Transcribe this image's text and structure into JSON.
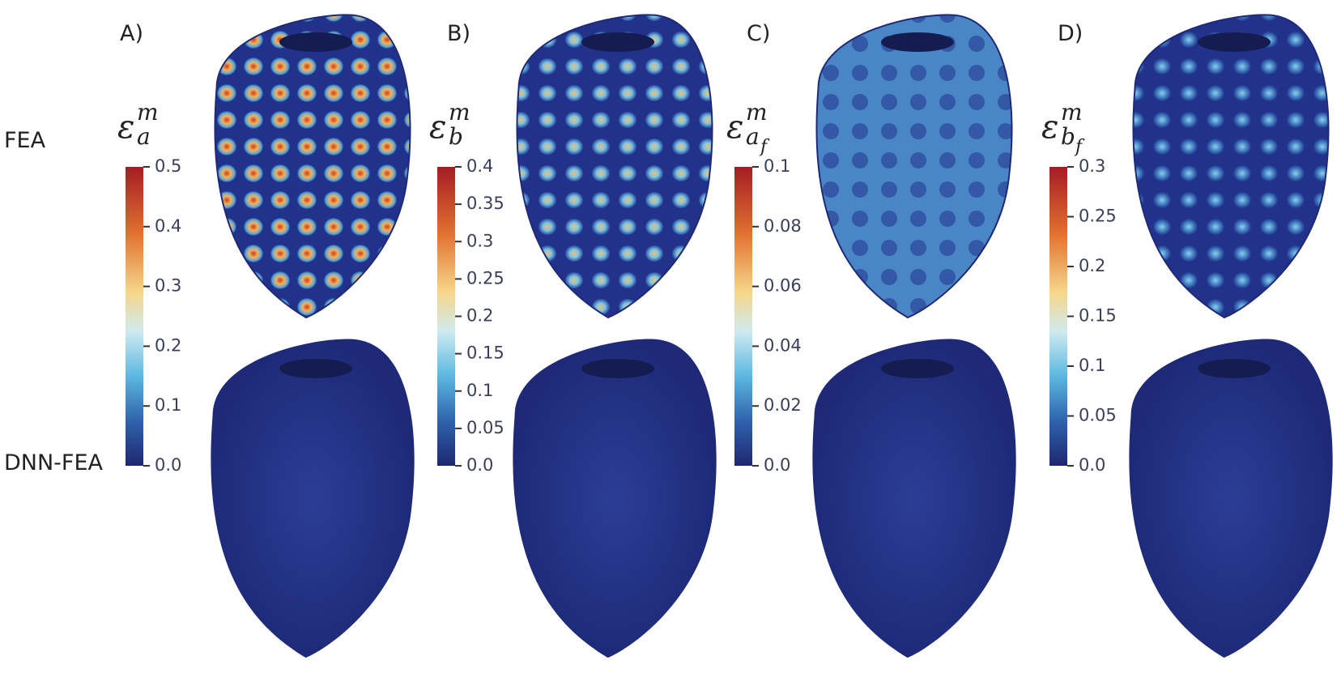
{
  "row_labels": [
    "FEA",
    "DNN-FEA"
  ],
  "panels": [
    {
      "label": "A)",
      "symbol": {
        "base": "ε",
        "sub": "a",
        "sup": "m"
      },
      "ticks": [
        "0.5",
        "0.4",
        "0.3",
        "0.2",
        "0.1",
        "0.0"
      ]
    },
    {
      "label": "B)",
      "symbol": {
        "base": "ε",
        "sub": "b",
        "sup": "m"
      },
      "ticks": [
        "0.4",
        "0.35",
        "0.3",
        "0.25",
        "0.2",
        "0.15",
        "0.1",
        "0.05",
        "0.0"
      ]
    },
    {
      "label": "C)",
      "symbol": {
        "base": "ε",
        "sub": "a",
        "sub_sub": "f",
        "sup": "m"
      },
      "ticks": [
        "0.1",
        "0.08",
        "0.06",
        "0.04",
        "0.02",
        "0.0"
      ]
    },
    {
      "label": "D)",
      "symbol": {
        "base": "ε",
        "sub": "b",
        "sub_sub": "f",
        "sup": "m"
      },
      "ticks": [
        "0.3",
        "0.25",
        "0.2",
        "0.15",
        "0.1",
        "0.05",
        "0.0"
      ]
    }
  ]
}
